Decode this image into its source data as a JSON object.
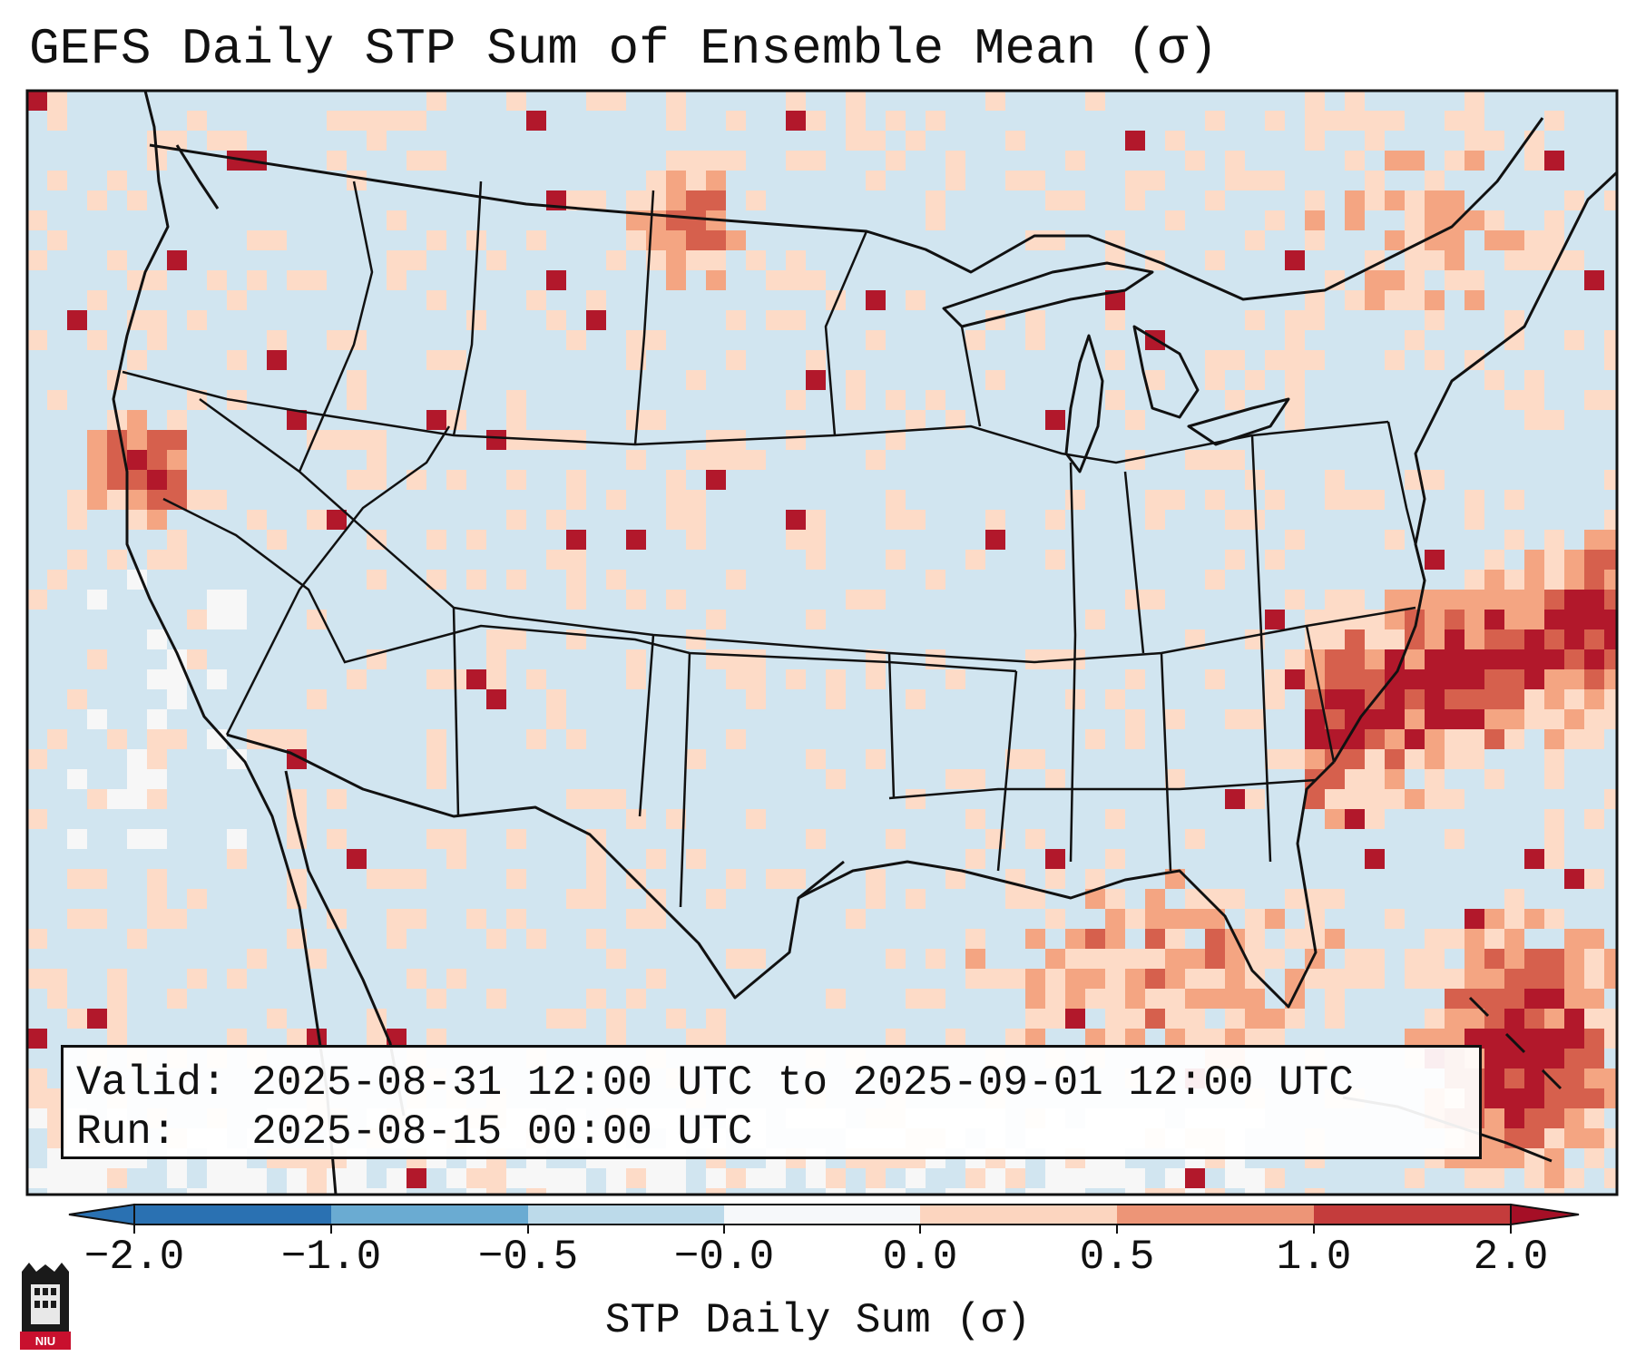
{
  "title": "GEFS Daily STP Sum of Ensemble Mean (σ)",
  "info": {
    "valid_line": "Valid: 2025-08-31 12:00 UTC to 2025-09-01 12:00 UTC",
    "run_line": "Run:   2025-08-15 00:00 UTC"
  },
  "colorbar": {
    "label": "STP Daily Sum (σ)",
    "ticks": [
      "−2.0",
      "−1.0",
      "−0.5",
      "−0.0",
      "0.0",
      "0.5",
      "1.0",
      "2.0"
    ],
    "colors": [
      "#2a71b2",
      "#6aabd2",
      "#bcdaea",
      "#f6f8fa",
      "#fcd5bf",
      "#ed9577",
      "#c43c3c",
      "#a50f26"
    ]
  },
  "colors": {
    "background": "#d1e5f0",
    "low": "#92c5de",
    "neutral": "#f7f7f7",
    "light": "#fddbc7",
    "mid": "#f4a582",
    "high": "#d6604d",
    "very_high": "#b2182b"
  },
  "logo": {
    "text": "NIU"
  },
  "icons": {
    "logo": "niu-logo-icon"
  }
}
